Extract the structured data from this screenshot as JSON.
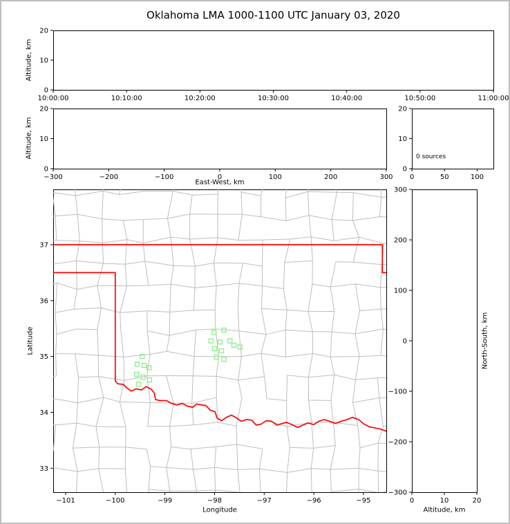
{
  "title": "Oklahoma LMA 1000-1100 UTC January 03, 2020",
  "colors": {
    "frame": "#000000",
    "state_border": "#ff0000",
    "county_lines": "#bdbdbd",
    "station_marker": "#90ee90"
  },
  "chart_data": [
    {
      "id": "altitude_vs_time",
      "type": "scatter",
      "xlabel": "",
      "ylabel": "Altitude, km",
      "xtick_labels": [
        "10:00:00",
        "10:10:00",
        "10:20:00",
        "10:30:00",
        "10:40:00",
        "10:50:00",
        "11:00:00"
      ],
      "ylim": [
        0,
        20
      ],
      "yticks": [
        0,
        10,
        20
      ],
      "points": []
    },
    {
      "id": "altitude_vs_eastwest",
      "type": "scatter",
      "xlabel": "East-West, km",
      "ylabel": "Altitude, km",
      "xlim": [
        -300,
        300
      ],
      "xticks": [
        -300,
        -200,
        -100,
        0,
        100,
        200,
        300
      ],
      "ylim": [
        0,
        20
      ],
      "yticks": [
        0,
        10,
        20
      ],
      "points": []
    },
    {
      "id": "source_count_histogram",
      "type": "bar",
      "annotation": "0 sources",
      "xlim": [
        0,
        125
      ],
      "xticks": [
        0,
        50,
        100
      ],
      "ylim": [
        0,
        20
      ],
      "yticks": [
        0,
        10,
        20
      ],
      "values": []
    },
    {
      "id": "map_plan_view",
      "type": "scatter",
      "xlabel": "Longitude",
      "ylabel": "Latitude",
      "xlim": [
        -101.25,
        -94.54
      ],
      "xticks": [
        -101,
        -100,
        -99,
        -98,
        -97,
        -96,
        -95
      ],
      "ylim": [
        32.57,
        37.99
      ],
      "yticks": [
        33,
        34,
        35,
        36,
        37
      ],
      "sources": [],
      "stations": [
        [
          -99.46,
          35.0
        ],
        [
          -99.56,
          34.86
        ],
        [
          -99.42,
          34.84
        ],
        [
          -99.32,
          34.8
        ],
        [
          -99.57,
          34.68
        ],
        [
          -99.44,
          34.63
        ],
        [
          -99.31,
          34.58
        ],
        [
          -99.53,
          34.5
        ],
        [
          -98.01,
          35.43
        ],
        [
          -97.81,
          35.47
        ],
        [
          -98.07,
          35.28
        ],
        [
          -97.89,
          35.26
        ],
        [
          -98.0,
          35.14
        ],
        [
          -97.86,
          35.1
        ],
        [
          -97.69,
          35.28
        ],
        [
          -97.61,
          35.2
        ],
        [
          -97.49,
          35.17
        ],
        [
          -97.96,
          34.99
        ],
        [
          -97.81,
          34.95
        ]
      ],
      "state_border": [
        [
          [
            -101.25,
            37.0
          ],
          [
            -94.62,
            37.0
          ],
          [
            -94.62,
            36.5
          ],
          [
            -94.5,
            36.5
          ]
        ],
        [
          [
            -101.25,
            36.5
          ],
          [
            -100.0,
            36.5
          ],
          [
            -100.0,
            34.56
          ],
          [
            -99.95,
            34.51
          ],
          [
            -99.84,
            34.5
          ],
          [
            -99.77,
            34.44
          ],
          [
            -99.68,
            34.38
          ],
          [
            -99.58,
            34.42
          ],
          [
            -99.47,
            34.4
          ],
          [
            -99.38,
            34.46
          ],
          [
            -99.27,
            34.41
          ],
          [
            -99.21,
            34.34
          ],
          [
            -99.19,
            34.23
          ],
          [
            -99.1,
            34.21
          ],
          [
            -98.97,
            34.21
          ],
          [
            -98.87,
            34.16
          ],
          [
            -98.76,
            34.13
          ],
          [
            -98.65,
            34.16
          ],
          [
            -98.55,
            34.11
          ],
          [
            -98.44,
            34.09
          ],
          [
            -98.36,
            34.15
          ],
          [
            -98.25,
            34.13
          ],
          [
            -98.17,
            34.12
          ],
          [
            -98.09,
            34.04
          ],
          [
            -97.99,
            34.01
          ],
          [
            -97.95,
            33.9
          ],
          [
            -97.86,
            33.85
          ],
          [
            -97.76,
            33.91
          ],
          [
            -97.66,
            33.95
          ],
          [
            -97.56,
            33.9
          ],
          [
            -97.46,
            33.84
          ],
          [
            -97.36,
            33.87
          ],
          [
            -97.25,
            33.86
          ],
          [
            -97.16,
            33.77
          ],
          [
            -97.06,
            33.79
          ],
          [
            -96.96,
            33.85
          ],
          [
            -96.85,
            33.84
          ],
          [
            -96.74,
            33.77
          ],
          [
            -96.64,
            33.8
          ],
          [
            -96.55,
            33.82
          ],
          [
            -96.44,
            33.78
          ],
          [
            -96.33,
            33.73
          ],
          [
            -96.22,
            33.77
          ],
          [
            -96.12,
            33.81
          ],
          [
            -96.0,
            33.78
          ],
          [
            -95.9,
            33.84
          ],
          [
            -95.79,
            33.87
          ],
          [
            -95.68,
            33.84
          ],
          [
            -95.56,
            33.8
          ],
          [
            -95.45,
            33.84
          ],
          [
            -95.33,
            33.87
          ],
          [
            -95.22,
            33.91
          ],
          [
            -95.1,
            33.87
          ],
          [
            -94.99,
            33.79
          ],
          [
            -94.88,
            33.74
          ],
          [
            -94.77,
            33.72
          ],
          [
            -94.66,
            33.7
          ],
          [
            -94.5,
            33.65
          ]
        ]
      ],
      "county_grid": {
        "seed": 20200103,
        "dlon": 0.47,
        "dlat": 0.41,
        "jitter": 0.16,
        "skip_fraction": 0.14
      }
    },
    {
      "id": "northsouth_vs_altitude",
      "type": "scatter",
      "xlabel": "Altitude, km",
      "ylabel": "North-South, km",
      "xlim": [
        0,
        20
      ],
      "xticks": [
        0,
        10,
        20
      ],
      "ylim": [
        -300,
        300
      ],
      "yticks": [
        300,
        200,
        100,
        0,
        -100,
        -200,
        -300
      ],
      "points": []
    }
  ]
}
